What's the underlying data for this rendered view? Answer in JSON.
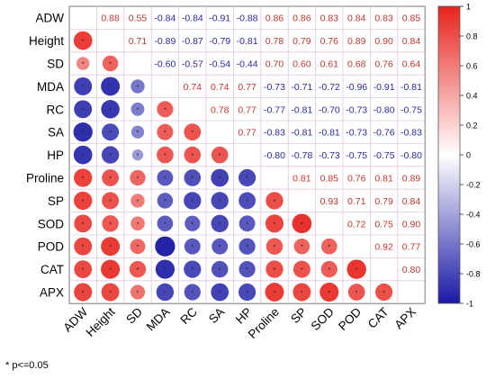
{
  "chart_data": {
    "type": "heatmap",
    "variables": [
      "ADW",
      "Height",
      "SD",
      "MDA",
      "RC",
      "SA",
      "HP",
      "Proline",
      "SP",
      "SOD",
      "POD",
      "CAT",
      "APX"
    ],
    "upper_values": [
      [
        null,
        0.88,
        0.55,
        -0.84,
        -0.84,
        -0.91,
        -0.88,
        0.86,
        0.86,
        0.83,
        0.84,
        0.83,
        0.85
      ],
      [
        null,
        null,
        0.71,
        -0.89,
        -0.87,
        -0.79,
        -0.81,
        0.78,
        0.79,
        0.76,
        0.89,
        0.9,
        0.84
      ],
      [
        null,
        null,
        null,
        -0.6,
        -0.57,
        -0.54,
        -0.44,
        0.7,
        0.6,
        0.61,
        0.68,
        0.76,
        0.64
      ],
      [
        null,
        null,
        null,
        null,
        0.74,
        0.74,
        0.77,
        -0.73,
        -0.71,
        -0.72,
        -0.96,
        -0.91,
        -0.81
      ],
      [
        null,
        null,
        null,
        null,
        null,
        0.78,
        0.77,
        -0.77,
        -0.81,
        -0.7,
        -0.73,
        -0.8,
        -0.75
      ],
      [
        null,
        null,
        null,
        null,
        null,
        null,
        0.77,
        -0.83,
        -0.81,
        -0.81,
        -0.73,
        -0.76,
        -0.83
      ],
      [
        null,
        null,
        null,
        null,
        null,
        null,
        null,
        -0.8,
        -0.78,
        -0.73,
        -0.75,
        -0.75,
        -0.8
      ],
      [
        null,
        null,
        null,
        null,
        null,
        null,
        null,
        null,
        0.81,
        0.85,
        0.76,
        0.81,
        0.89
      ],
      [
        null,
        null,
        null,
        null,
        null,
        null,
        null,
        null,
        null,
        0.93,
        0.71,
        0.79,
        0.84
      ],
      [
        null,
        null,
        null,
        null,
        null,
        null,
        null,
        null,
        null,
        null,
        0.72,
        0.75,
        0.9
      ],
      [
        null,
        null,
        null,
        null,
        null,
        null,
        null,
        null,
        null,
        null,
        null,
        0.92,
        0.77
      ],
      [
        null,
        null,
        null,
        null,
        null,
        null,
        null,
        null,
        null,
        null,
        null,
        null,
        0.8
      ],
      [
        null,
        null,
        null,
        null,
        null,
        null,
        null,
        null,
        null,
        null,
        null,
        null,
        null
      ]
    ],
    "lower_marker": "*",
    "colorbar": {
      "range": [
        -1,
        1
      ],
      "ticks": [
        1,
        0.8,
        0.6,
        0.4,
        0.2,
        0,
        -0.2,
        -0.4,
        -0.6,
        -0.8,
        -1
      ],
      "low_color": "#1a1aa6",
      "mid_color": "#ffffff",
      "high_color": "#e8231c"
    },
    "legend_position": "right"
  },
  "footnote": "* p<=0.05"
}
